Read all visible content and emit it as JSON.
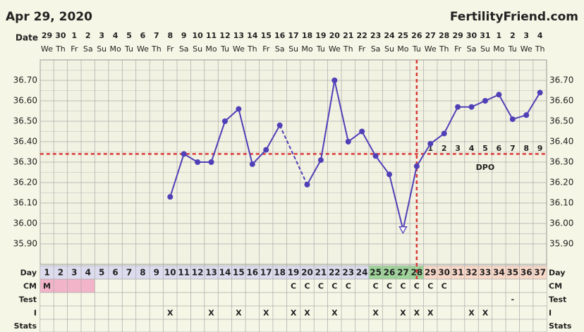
{
  "chart_data": {
    "type": "line",
    "title": "Apr 29, 2020",
    "brand": "FertilityFriend.com",
    "date_label": "Date",
    "dates": [
      29,
      30,
      1,
      2,
      3,
      4,
      5,
      6,
      7,
      8,
      9,
      10,
      11,
      12,
      13,
      14,
      15,
      16,
      17,
      18,
      19,
      20,
      21,
      22,
      23,
      24,
      25,
      26,
      27,
      28,
      29,
      30,
      31,
      1,
      2,
      3,
      4
    ],
    "weekdays": [
      "We",
      "Th",
      "Fr",
      "Sa",
      "Su",
      "Mo",
      "Tu",
      "We",
      "Th",
      "Fr",
      "Sa",
      "Su",
      "Mo",
      "Tu",
      "We",
      "Th",
      "Fr",
      "Sa",
      "Su",
      "Mo",
      "Tu",
      "We",
      "Th",
      "Fr",
      "Sa",
      "Su",
      "Mo",
      "Tu",
      "We",
      "Th",
      "Fr",
      "Sa",
      "Su",
      "Mo",
      "Tu",
      "We",
      "Th"
    ],
    "days": [
      1,
      2,
      3,
      4,
      5,
      6,
      7,
      8,
      9,
      10,
      11,
      12,
      13,
      14,
      15,
      16,
      17,
      18,
      19,
      20,
      21,
      22,
      23,
      24,
      25,
      26,
      27,
      28,
      29,
      30,
      31,
      32,
      33,
      34,
      35,
      36,
      37
    ],
    "series": [
      {
        "color": "#5040b8",
        "values": [
          null,
          null,
          null,
          null,
          null,
          null,
          null,
          null,
          null,
          36.13,
          36.34,
          36.3,
          36.3,
          36.5,
          36.56,
          36.29,
          36.36,
          36.48,
          null,
          36.19,
          36.31,
          36.7,
          36.4,
          36.45,
          36.33,
          36.24,
          35.97,
          36.28,
          36.39,
          36.44,
          36.57,
          36.57,
          36.6,
          36.63,
          36.51,
          36.53,
          36.64
        ]
      }
    ],
    "open_marker_days": [
      27
    ],
    "ylim": [
      35.8,
      36.8
    ],
    "yticks": [
      {
        "value": 35.9,
        "label": "35.90"
      },
      {
        "value": 36.0,
        "label": "36.00"
      },
      {
        "value": 36.1,
        "label": "36.10"
      },
      {
        "value": 36.2,
        "label": "36.20"
      },
      {
        "value": 36.3,
        "label": "36.30"
      },
      {
        "value": 36.4,
        "label": "36.40"
      },
      {
        "value": 36.5,
        "label": "36.50"
      },
      {
        "value": 36.6,
        "label": "36.60"
      },
      {
        "value": 36.7,
        "label": "36.70"
      }
    ],
    "grid": true,
    "coverline": 36.34,
    "ovulation_day": 28,
    "dpo": {
      "label": "DPO",
      "values": [
        1,
        2,
        3,
        4,
        5,
        6,
        7,
        8,
        9
      ]
    },
    "day_phases": [
      {
        "from": 1,
        "to": 24,
        "color": "#dcdcee"
      },
      {
        "from": 25,
        "to": 28,
        "color": "#9fd49a"
      },
      {
        "from": 29,
        "to": 37,
        "color": "#f8d8c8"
      }
    ],
    "cm_shade": {
      "color": "#f2b4c8",
      "days": [
        1,
        2,
        3,
        4
      ]
    },
    "rows": [
      {
        "label": "Day"
      },
      {
        "label": "CM",
        "values": [
          "M",
          null,
          null,
          null,
          null,
          null,
          null,
          null,
          null,
          null,
          null,
          null,
          null,
          null,
          null,
          null,
          null,
          null,
          "C",
          "C",
          "C",
          "C",
          "C",
          null,
          "C",
          "C",
          "C",
          "C",
          "C",
          "C",
          null,
          null,
          null,
          null,
          null,
          null,
          null
        ]
      },
      {
        "label": "Test",
        "values": [
          null,
          null,
          null,
          null,
          null,
          null,
          null,
          null,
          null,
          null,
          null,
          null,
          null,
          null,
          null,
          null,
          null,
          null,
          null,
          null,
          null,
          null,
          null,
          null,
          null,
          null,
          null,
          null,
          null,
          null,
          null,
          null,
          null,
          null,
          "-",
          null,
          null
        ]
      },
      {
        "label": "I",
        "values": [
          null,
          null,
          null,
          null,
          null,
          null,
          null,
          null,
          null,
          "X",
          null,
          null,
          "X",
          null,
          "X",
          null,
          "X",
          null,
          "X",
          "X",
          null,
          "X",
          null,
          null,
          "X",
          null,
          "X",
          "X",
          "X",
          null,
          null,
          "X",
          "X",
          null,
          null,
          null,
          null
        ]
      },
      {
        "label": "Stats"
      }
    ]
  }
}
